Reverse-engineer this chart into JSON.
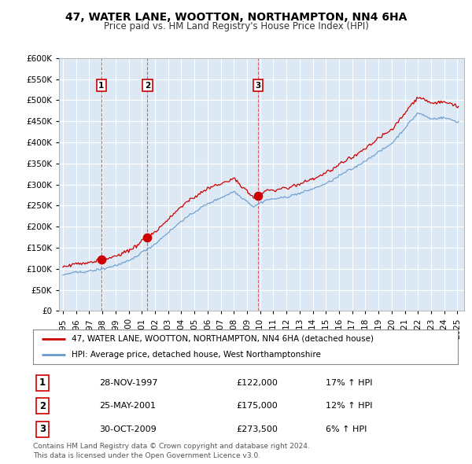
{
  "title": "47, WATER LANE, WOOTTON, NORTHAMPTON, NN4 6HA",
  "subtitle": "Price paid vs. HM Land Registry's House Price Index (HPI)",
  "legend_line1": "47, WATER LANE, WOOTTON, NORTHAMPTON, NN4 6HA (detached house)",
  "legend_line2": "HPI: Average price, detached house, West Northamptonshire",
  "transactions": [
    {
      "label": "1",
      "date": "28-NOV-1997",
      "price": 122000,
      "hpi_pct": "17% ↑ HPI",
      "x": 1997.92
    },
    {
      "label": "2",
      "date": "25-MAY-2001",
      "price": 175000,
      "hpi_pct": "12% ↑ HPI",
      "x": 2001.42
    },
    {
      "label": "3",
      "date": "30-OCT-2009",
      "price": 273500,
      "hpi_pct": "6% ↑ HPI",
      "x": 2009.83
    }
  ],
  "footer_line1": "Contains HM Land Registry data © Crown copyright and database right 2024.",
  "footer_line2": "This data is licensed under the Open Government Licence v3.0.",
  "price_line_color": "#cc0000",
  "hpi_line_color": "#6699cc",
  "chart_bg_color": "#dce9f5",
  "transaction_dot_color": "#cc0000",
  "transaction_vline_color": "#cc0000",
  "label_box_color": "#cc0000",
  "background_color": "#ffffff",
  "grid_color": "#ffffff",
  "ylim": [
    0,
    600000
  ],
  "yticks": [
    0,
    50000,
    100000,
    150000,
    200000,
    250000,
    300000,
    350000,
    400000,
    450000,
    500000,
    550000,
    600000
  ],
  "xlim_start": 1994.7,
  "xlim_end": 2025.5,
  "xticks": [
    1995,
    1996,
    1997,
    1998,
    1999,
    2000,
    2001,
    2002,
    2003,
    2004,
    2005,
    2006,
    2007,
    2008,
    2009,
    2010,
    2011,
    2012,
    2013,
    2014,
    2015,
    2016,
    2017,
    2018,
    2019,
    2020,
    2021,
    2022,
    2023,
    2024,
    2025
  ]
}
